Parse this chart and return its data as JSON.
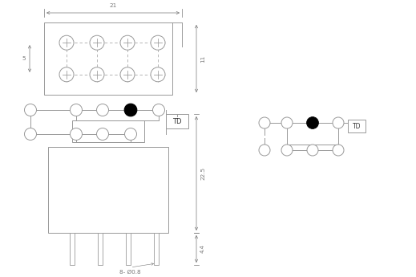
{
  "figsize": [
    5.19,
    3.45
  ],
  "dpi": 100,
  "lc": "#999999",
  "td_label": "TD",
  "dim_8_text": "8- Ø0.8"
}
